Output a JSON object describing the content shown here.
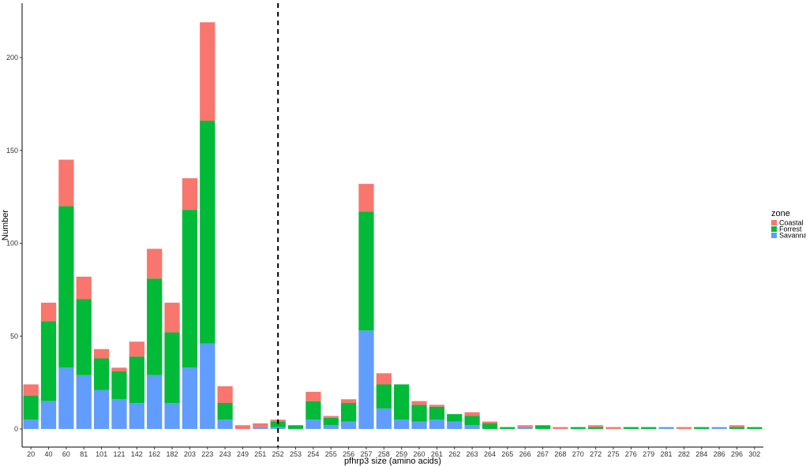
{
  "chart_data": {
    "type": "bar",
    "stacked": true,
    "xlabel": "pfhrp3 size (amino acids)",
    "ylabel": "Number",
    "ylim": [
      0,
      220
    ],
    "yticks": [
      0,
      50,
      100,
      150,
      200
    ],
    "grid": false,
    "legend_placement": "right",
    "legend_title": "zone",
    "reference_line": {
      "category": "252",
      "style": "dashed",
      "color": "#000000"
    },
    "categories": [
      "20",
      "40",
      "60",
      "81",
      "101",
      "121",
      "142",
      "162",
      "182",
      "203",
      "223",
      "243",
      "249",
      "251",
      "252",
      "253",
      "254",
      "255",
      "256",
      "257",
      "258",
      "259",
      "260",
      "261",
      "262",
      "263",
      "264",
      "265",
      "266",
      "267",
      "268",
      "270",
      "272",
      "275",
      "276",
      "279",
      "281",
      "282",
      "284",
      "286",
      "296",
      "302"
    ],
    "series": [
      {
        "name": "Savannah",
        "color": "#619CFF",
        "values": [
          5,
          15,
          33,
          29,
          21,
          16,
          14,
          29,
          14,
          33,
          46,
          5,
          0,
          1,
          1,
          0,
          5,
          2,
          4,
          53,
          11,
          5,
          4,
          5,
          4,
          2,
          0,
          0,
          1,
          0,
          0,
          0,
          0,
          0,
          0,
          0,
          1,
          0,
          0,
          1,
          0,
          0
        ]
      },
      {
        "name": "Forrest",
        "color": "#00BA38",
        "values": [
          13,
          43,
          87,
          41,
          17,
          15,
          25,
          52,
          38,
          85,
          120,
          9,
          0,
          0,
          3,
          2,
          10,
          4,
          10,
          64,
          13,
          19,
          9,
          7,
          4,
          5,
          3,
          1,
          0,
          2,
          0,
          1,
          1,
          0,
          1,
          1,
          0,
          0,
          1,
          0,
          1,
          1
        ]
      },
      {
        "name": "Coastal",
        "color": "#F8766D",
        "values": [
          6,
          10,
          25,
          12,
          5,
          2,
          8,
          16,
          16,
          17,
          53,
          9,
          2,
          2,
          1,
          0,
          5,
          1,
          2,
          15,
          6,
          0,
          2,
          1,
          0,
          2,
          1,
          0,
          1,
          0,
          1,
          0,
          1,
          1,
          0,
          0,
          0,
          1,
          0,
          0,
          1,
          0
        ]
      }
    ],
    "legend_order": [
      "Coastal",
      "Forrest",
      "Savannah"
    ]
  }
}
